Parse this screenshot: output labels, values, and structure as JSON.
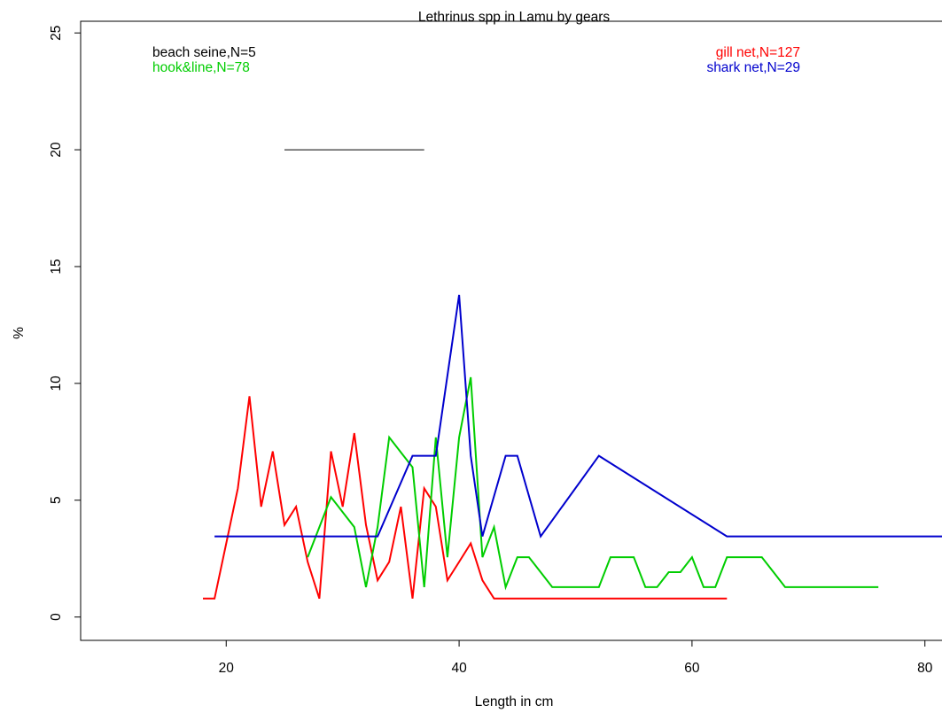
{
  "chart_data": {
    "type": "line",
    "title": "Lethrinus spp in Lamu by gears",
    "xlabel": "Length in cm",
    "ylabel": "%",
    "xlim": [
      7.5,
      82
    ],
    "ylim": [
      -1,
      25.5
    ],
    "xticks": [
      20,
      40,
      60,
      80
    ],
    "yticks": [
      0,
      5,
      10,
      15,
      20,
      25
    ],
    "grid": false,
    "series": [
      {
        "name": "beach seine,N=5",
        "color": "#000000",
        "x": [
          25,
          37
        ],
        "y": [
          20,
          20
        ]
      },
      {
        "name": "gill net,N=127",
        "color": "#ff0000",
        "x": [
          18,
          19,
          20,
          21,
          22,
          23,
          24,
          25,
          26,
          27,
          28,
          29,
          30,
          31,
          32,
          33,
          34,
          35,
          36,
          37,
          38,
          39,
          40,
          41,
          42,
          43,
          44,
          45,
          46,
          47,
          48,
          49,
          50,
          51,
          52,
          53,
          54,
          55,
          56,
          57,
          58,
          59,
          60,
          61,
          62,
          63
        ],
        "y": [
          0.79,
          0.79,
          3.15,
          5.51,
          9.45,
          4.72,
          7.09,
          3.94,
          4.72,
          2.36,
          0.79,
          7.09,
          4.72,
          7.87,
          3.94,
          1.57,
          2.36,
          4.72,
          0.79,
          5.51,
          4.72,
          1.57,
          2.36,
          3.15,
          1.57,
          0.79,
          0.79,
          0.79,
          0.79,
          0.79,
          0.79,
          0.79,
          0.79,
          0.79,
          0.79,
          0.79,
          0.79,
          0.79,
          0.79,
          0.79,
          0.79,
          0.79,
          0.79,
          0.79,
          0.79,
          0.79
        ]
      },
      {
        "name": "hook&line,N=78",
        "color": "#00cd00",
        "x": [
          27,
          28,
          29,
          30,
          31,
          32,
          33,
          34,
          35,
          36,
          37,
          38,
          39,
          40,
          41,
          42,
          43,
          44,
          45,
          46,
          47,
          48,
          49,
          50,
          51,
          52,
          53,
          54,
          55,
          56,
          57,
          58,
          59,
          60,
          61,
          62,
          63,
          64,
          65,
          66,
          67,
          68,
          69,
          70,
          71,
          72,
          73,
          74,
          75,
          76
        ],
        "y": [
          2.56,
          3.85,
          5.13,
          4.49,
          3.85,
          1.28,
          3.85,
          7.69,
          7.05,
          6.41,
          1.28,
          7.69,
          2.56,
          7.69,
          10.26,
          2.56,
          3.85,
          1.28,
          2.56,
          2.56,
          1.92,
          1.28,
          1.28,
          1.28,
          1.28,
          1.28,
          2.56,
          2.56,
          2.56,
          1.28,
          1.28,
          1.92,
          1.92,
          2.56,
          1.28,
          1.28,
          2.56,
          2.56,
          2.56,
          2.56,
          1.92,
          1.28,
          1.28,
          1.28,
          1.28,
          1.28,
          1.28,
          1.28,
          1.28,
          1.28
        ]
      },
      {
        "name": "shark net,N=29",
        "color": "#0000cd",
        "x": [
          19,
          33,
          36,
          38,
          40,
          41,
          42,
          44,
          45,
          47,
          52,
          63,
          82
        ],
        "y": [
          3.45,
          3.45,
          6.9,
          6.9,
          13.79,
          6.9,
          3.45,
          6.9,
          6.9,
          3.45,
          6.9,
          3.45,
          3.45
        ]
      }
    ],
    "legend": [
      {
        "label": "beach seine,N=5",
        "color": "#000000",
        "placement": "top-left"
      },
      {
        "label": "hook&line,N=78",
        "color": "#00cd00",
        "placement": "top-left"
      },
      {
        "label": "gill net,N=127",
        "color": "#ff0000",
        "placement": "top-right"
      },
      {
        "label": "shark net,N=29",
        "color": "#0000cd",
        "placement": "top-right"
      }
    ]
  }
}
